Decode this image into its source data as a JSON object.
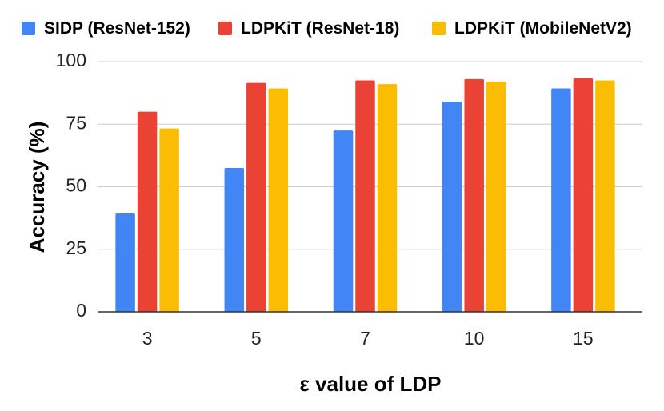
{
  "chart_data": {
    "type": "bar",
    "title": "",
    "xlabel": "ε value of LDP",
    "ylabel": "Accuracy (%)",
    "ylim": [
      0,
      100
    ],
    "yticks": [
      0,
      25,
      50,
      75,
      100
    ],
    "grid": true,
    "legend_position": "top",
    "categories": [
      "3",
      "5",
      "7",
      "10",
      "15"
    ],
    "series": [
      {
        "name": "SIDP (ResNet-152)",
        "color": "#4285F4",
        "values": [
          39.3,
          57.5,
          72.5,
          84.0,
          89.3
        ]
      },
      {
        "name": "LDPKiT (ResNet-18)",
        "color": "#EA4335",
        "values": [
          80.0,
          91.5,
          92.5,
          93.0,
          93.3
        ]
      },
      {
        "name": "LDPKiT (MobileNetV2)",
        "color": "#FBBC04",
        "values": [
          73.3,
          89.3,
          91.0,
          92.0,
          92.5
        ]
      }
    ]
  }
}
